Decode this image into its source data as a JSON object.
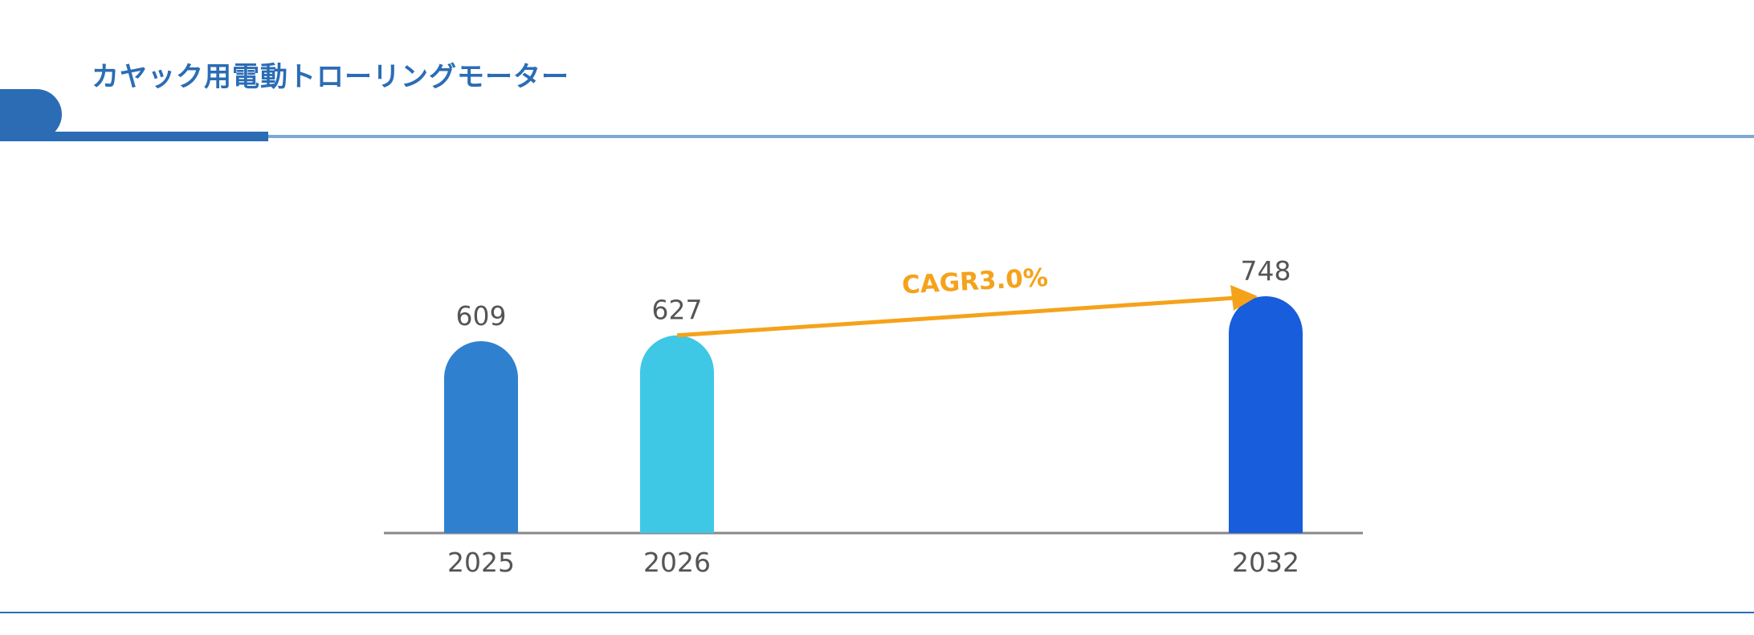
{
  "header": {
    "title": "カヤック用電動トローリングモーター"
  },
  "colors": {
    "accent": "#2b6cb5",
    "arrow": "#f5a21b"
  },
  "chart_data": {
    "type": "bar",
    "title": "カヤック用電動トローリングモーター",
    "categories": [
      "2025",
      "2026",
      "2032"
    ],
    "values": [
      609,
      627,
      748
    ],
    "bar_colors": [
      "#3080d0",
      "#3fc8e6",
      "#175ddc"
    ],
    "annotation": {
      "text": "CAGR3.0%",
      "from": "2026",
      "to": "2032"
    },
    "grid": false
  }
}
